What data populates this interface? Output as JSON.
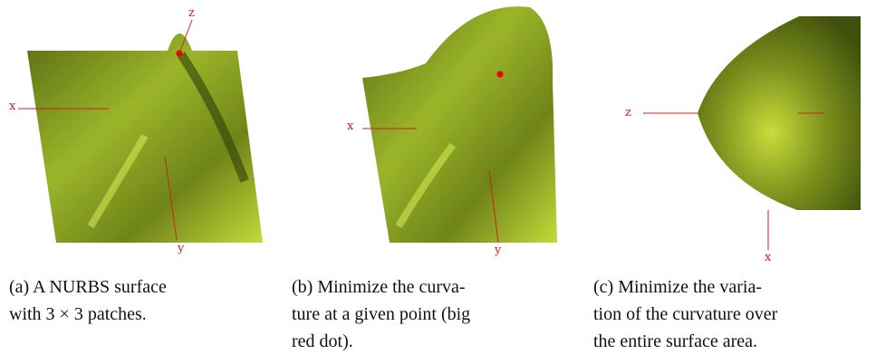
{
  "panels": [
    {
      "axis_labels": [
        "z",
        "x",
        "y"
      ],
      "caption": [
        "(a)  A  NURBS  surface",
        "with 3 × 3 patches."
      ]
    },
    {
      "axis_labels": [
        "x",
        "y"
      ],
      "caption": [
        "(b) Minimize the curva-",
        "ture at a given point (big",
        "red dot)."
      ]
    },
    {
      "axis_labels": [
        "z",
        "x"
      ],
      "caption": [
        "(c) Minimize the varia-",
        "tion of the curvature over",
        "the entire surface area."
      ]
    }
  ]
}
